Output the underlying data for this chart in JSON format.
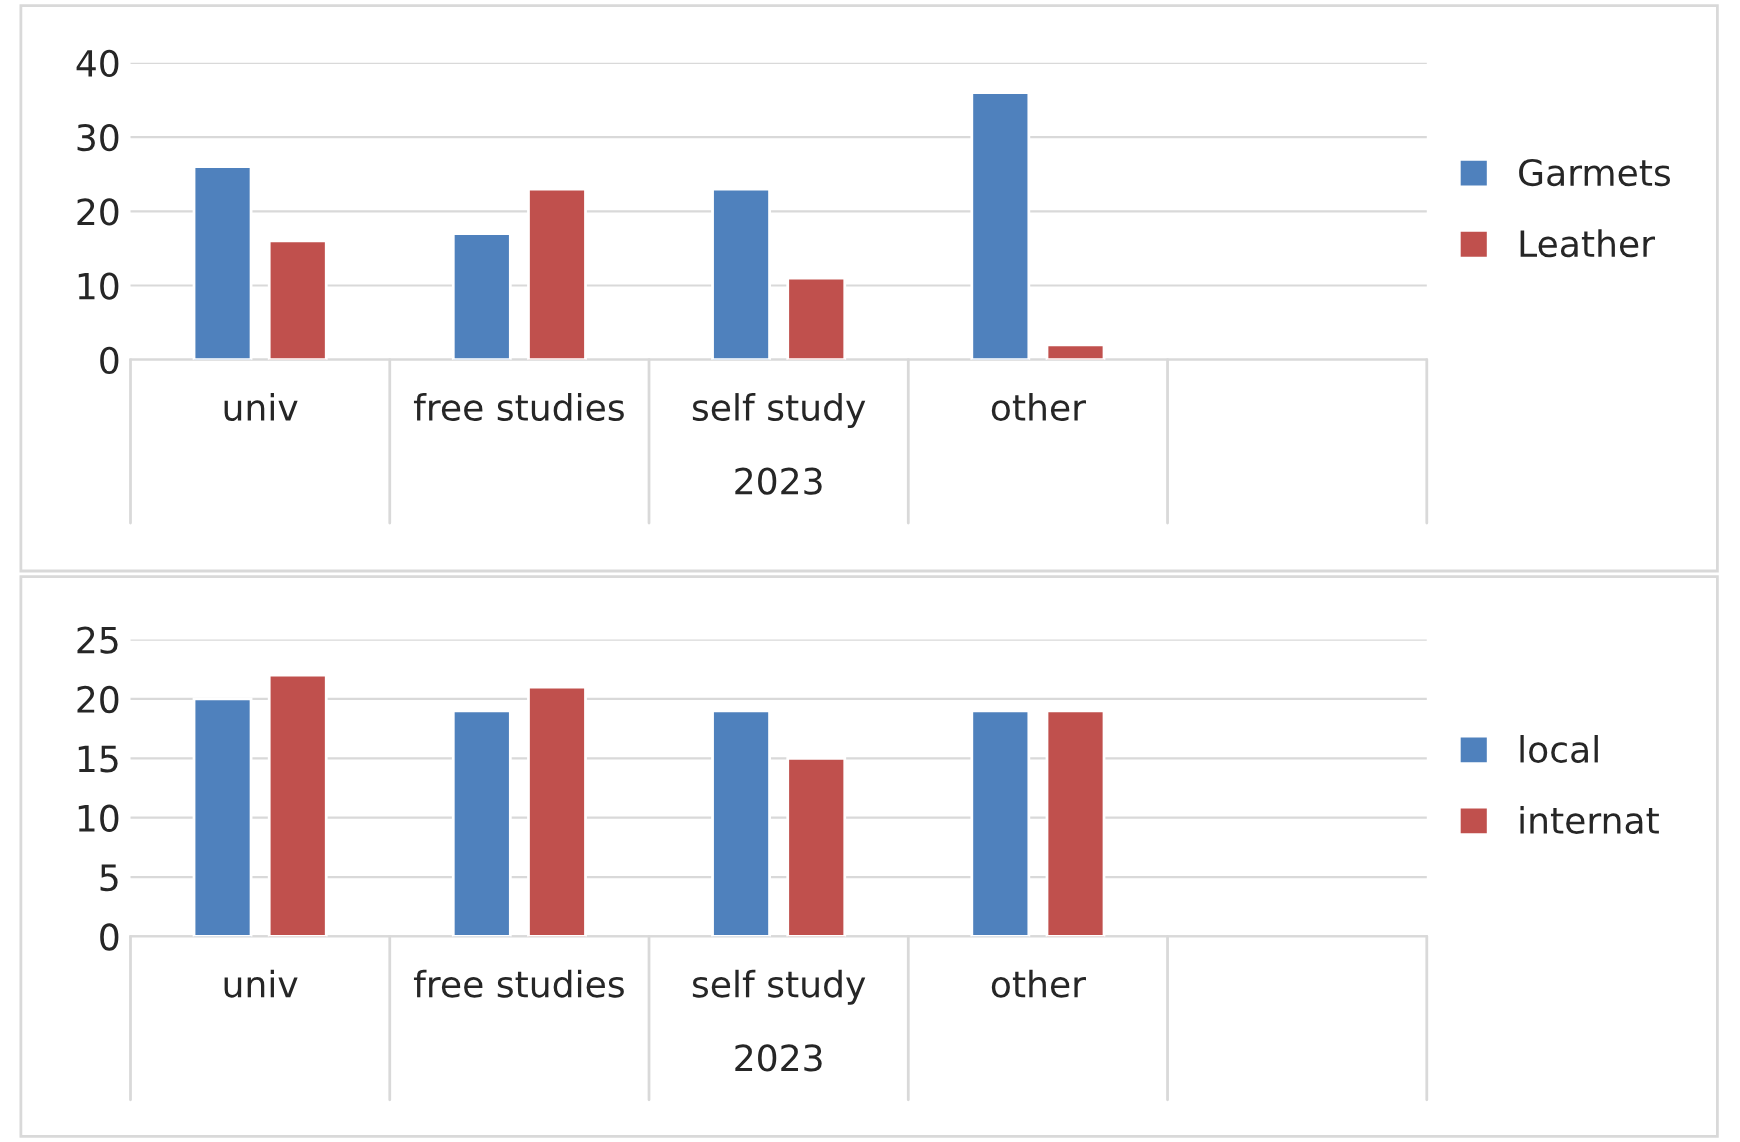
{
  "chart_data": [
    {
      "type": "bar",
      "categories": [
        "univ",
        "free studies",
        "self study",
        "other",
        null
      ],
      "xlabel": "2023",
      "ylim": [
        0,
        40
      ],
      "yticks": [
        0,
        10,
        20,
        30,
        40
      ],
      "grid": "y",
      "legend": "right",
      "series": [
        {
          "name": "Garmets",
          "color": "#4f81bd",
          "values": [
            26,
            17,
            23,
            36,
            null
          ]
        },
        {
          "name": "Leather",
          "color": "#c0504d",
          "values": [
            16,
            23,
            11,
            2,
            null
          ]
        }
      ]
    },
    {
      "type": "bar",
      "categories": [
        "univ",
        "free studies",
        "self study",
        "other",
        null
      ],
      "xlabel": "2023",
      "ylim": [
        0,
        25
      ],
      "yticks": [
        0,
        5,
        10,
        15,
        20,
        25
      ],
      "grid": "y",
      "legend": "right",
      "series": [
        {
          "name": "local",
          "color": "#4f81bd",
          "values": [
            20,
            19,
            19,
            19,
            null
          ]
        },
        {
          "name": "internat",
          "color": "#c0504d",
          "values": [
            22,
            21,
            15,
            19,
            null
          ]
        }
      ]
    }
  ]
}
